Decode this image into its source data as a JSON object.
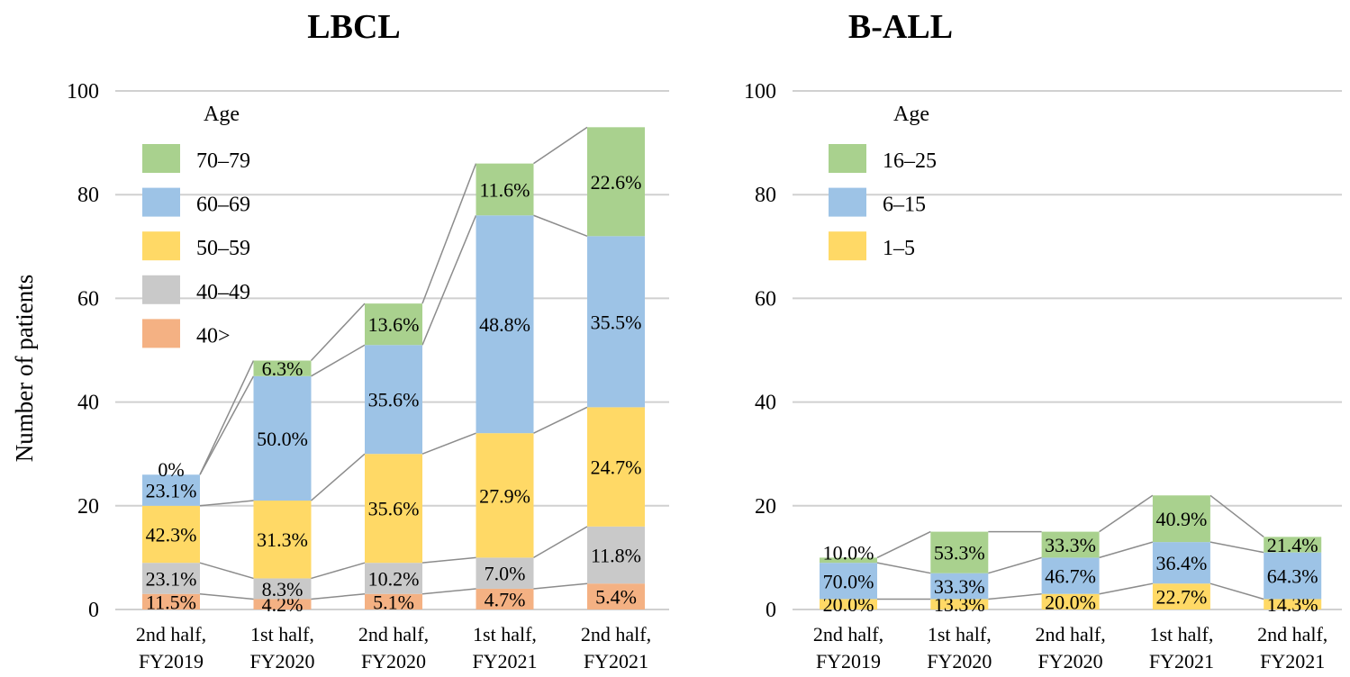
{
  "chart_data": [
    {
      "type": "bar",
      "stacked": true,
      "title": "LBCL",
      "ylabel": "Number of patients",
      "xlabel": "",
      "ylim": [
        0,
        100
      ],
      "yticks": [
        0,
        20,
        40,
        60,
        80,
        100
      ],
      "grid": true,
      "legend_title": "Age",
      "legend_position": "top-left",
      "categories": [
        [
          "2nd half,",
          "FY2019"
        ],
        [
          "1st half,",
          "FY2020"
        ],
        [
          "2nd half,",
          "FY2020"
        ],
        [
          "1st half,",
          "FY2021"
        ],
        [
          "2nd half,",
          "FY2021"
        ]
      ],
      "series": [
        {
          "name": "40>",
          "color": "#f4b183",
          "values": [
            3,
            2,
            3,
            4,
            5
          ],
          "labels": [
            "11.5%",
            "4.2%",
            "5.1%",
            "4.7%",
            "5.4%"
          ]
        },
        {
          "name": "40–49",
          "color": "#c9c9c9",
          "values": [
            6,
            4,
            6,
            6,
            11
          ],
          "labels": [
            "23.1%",
            "8.3%",
            "10.2%",
            "7.0%",
            "11.8%"
          ]
        },
        {
          "name": "50–59",
          "color": "#ffd966",
          "values": [
            11,
            15,
            21,
            24,
            23
          ],
          "labels": [
            "42.3%",
            "31.3%",
            "35.6%",
            "27.9%",
            "24.7%"
          ]
        },
        {
          "name": "60–69",
          "color": "#9dc3e6",
          "values": [
            6,
            24,
            21,
            42,
            33
          ],
          "labels": [
            "23.1%",
            "50.0%",
            "35.6%",
            "48.8%",
            "35.5%"
          ]
        },
        {
          "name": "70–79",
          "color": "#a9d18e",
          "values": [
            0,
            3,
            8,
            10,
            21
          ],
          "labels": [
            "0%",
            "6.3%",
            "13.6%",
            "11.6%",
            "22.6%"
          ]
        }
      ]
    },
    {
      "type": "bar",
      "stacked": true,
      "title": "B-ALL",
      "ylabel": "",
      "xlabel": "",
      "ylim": [
        0,
        100
      ],
      "yticks": [
        0,
        20,
        40,
        60,
        80,
        100
      ],
      "grid": true,
      "legend_title": "Age",
      "legend_position": "top-left",
      "categories": [
        [
          "2nd half,",
          "FY2019"
        ],
        [
          "1st half,",
          "FY2020"
        ],
        [
          "2nd half,",
          "FY2020"
        ],
        [
          "1st half,",
          "FY2021"
        ],
        [
          "2nd half,",
          "FY2021"
        ]
      ],
      "series": [
        {
          "name": "1–5",
          "color": "#ffd966",
          "values": [
            2,
            2,
            3,
            5,
            2
          ],
          "labels": [
            "20.0%",
            "13.3%",
            "20.0%",
            "22.7%",
            "14.3%"
          ]
        },
        {
          "name": "6–15",
          "color": "#9dc3e6",
          "values": [
            7,
            5,
            7,
            8,
            9
          ],
          "labels": [
            "70.0%",
            "33.3%",
            "46.7%",
            "36.4%",
            "64.3%"
          ]
        },
        {
          "name": "16–25",
          "color": "#a9d18e",
          "values": [
            1,
            8,
            5,
            9,
            3
          ],
          "labels": [
            "10.0%",
            "53.3%",
            "33.3%",
            "40.9%",
            "21.4%"
          ]
        }
      ]
    }
  ]
}
